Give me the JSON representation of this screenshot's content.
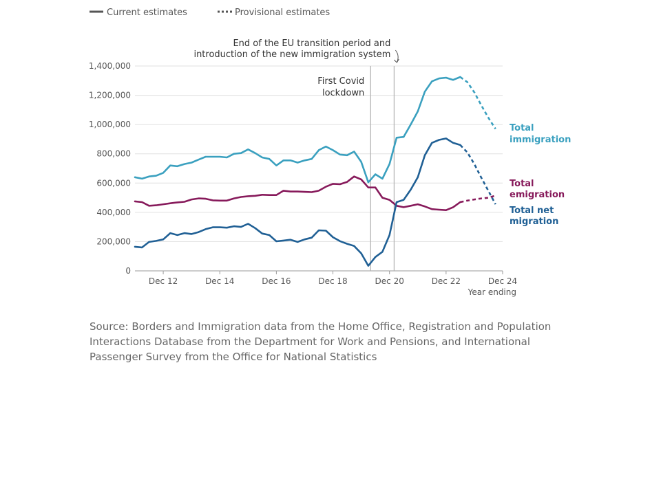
{
  "chart_data": {
    "type": "line",
    "xlabel": "Year ending",
    "ylabel": "",
    "ylim": [
      0,
      1400000
    ],
    "yticks": [
      "0",
      "200,000",
      "400,000",
      "600,000",
      "800,000",
      "1,000,000",
      "1,200,000",
      "1,400,000"
    ],
    "ytick_values": [
      0,
      200000,
      400000,
      600000,
      800000,
      1000000,
      1200000,
      1400000
    ],
    "xlim": [
      "Nov 11",
      "Dec 24"
    ],
    "xticks": [
      "Dec 12",
      "Dec 14",
      "Dec 16",
      "Dec 18",
      "Dec 20",
      "Dec 22",
      "Dec 24"
    ],
    "xtick_values": [
      2012.917,
      2014.917,
      2016.917,
      2018.917,
      2020.917,
      2022.917,
      2024.917
    ],
    "grid": "horizontal",
    "legend": {
      "placement": "top-left",
      "items": [
        {
          "label": "Current estimates",
          "style": "solid"
        },
        {
          "label": "Provisional estimates",
          "style": "dashed"
        }
      ]
    },
    "annotations": [
      {
        "lines": [
          "First Covid",
          "lockdown"
        ],
        "x": 2020.25
      },
      {
        "lines": [
          "End of the EU transition period and",
          "introduction of the new immigration system"
        ],
        "x": 2021.08
      }
    ],
    "series": [
      {
        "name": "Total immigration",
        "label_lines": [
          "Total",
          "immigration"
        ],
        "color": "#3aa0bf",
        "current": [
          [
            2011.917,
            640000
          ],
          [
            2012.167,
            630000
          ],
          [
            2012.417,
            645000
          ],
          [
            2012.667,
            650000
          ],
          [
            2012.917,
            670000
          ],
          [
            2013.167,
            720000
          ],
          [
            2013.417,
            715000
          ],
          [
            2013.667,
            730000
          ],
          [
            2013.917,
            740000
          ],
          [
            2014.167,
            760000
          ],
          [
            2014.417,
            780000
          ],
          [
            2014.667,
            780000
          ],
          [
            2014.917,
            780000
          ],
          [
            2015.167,
            775000
          ],
          [
            2015.417,
            800000
          ],
          [
            2015.667,
            805000
          ],
          [
            2015.917,
            830000
          ],
          [
            2016.167,
            805000
          ],
          [
            2016.417,
            775000
          ],
          [
            2016.667,
            765000
          ],
          [
            2016.917,
            720000
          ],
          [
            2017.167,
            755000
          ],
          [
            2017.417,
            755000
          ],
          [
            2017.667,
            740000
          ],
          [
            2017.917,
            755000
          ],
          [
            2018.167,
            765000
          ],
          [
            2018.417,
            825000
          ],
          [
            2018.667,
            850000
          ],
          [
            2018.917,
            825000
          ],
          [
            2019.167,
            795000
          ],
          [
            2019.417,
            790000
          ],
          [
            2019.667,
            815000
          ],
          [
            2019.917,
            745000
          ],
          [
            2020.167,
            605000
          ],
          [
            2020.417,
            660000
          ],
          [
            2020.667,
            630000
          ],
          [
            2020.917,
            730000
          ],
          [
            2021.167,
            910000
          ],
          [
            2021.417,
            915000
          ],
          [
            2021.667,
            1000000
          ],
          [
            2021.917,
            1090000
          ],
          [
            2022.167,
            1225000
          ],
          [
            2022.417,
            1295000
          ],
          [
            2022.667,
            1315000
          ],
          [
            2022.917,
            1320000
          ],
          [
            2023.167,
            1305000
          ],
          [
            2023.417,
            1325000
          ]
        ],
        "provisional": [
          [
            2023.417,
            1325000
          ],
          [
            2023.667,
            1290000
          ],
          [
            2023.917,
            1220000
          ],
          [
            2024.167,
            1130000
          ],
          [
            2024.417,
            1045000
          ],
          [
            2024.667,
            970000
          ]
        ]
      },
      {
        "name": "Total emigration",
        "label_lines": [
          "Total",
          "emigration"
        ],
        "color": "#871a5b",
        "current": [
          [
            2011.917,
            475000
          ],
          [
            2012.167,
            470000
          ],
          [
            2012.417,
            445000
          ],
          [
            2012.667,
            448000
          ],
          [
            2012.917,
            455000
          ],
          [
            2013.167,
            462000
          ],
          [
            2013.417,
            468000
          ],
          [
            2013.667,
            472000
          ],
          [
            2013.917,
            488000
          ],
          [
            2014.167,
            495000
          ],
          [
            2014.417,
            493000
          ],
          [
            2014.667,
            482000
          ],
          [
            2014.917,
            480000
          ],
          [
            2015.167,
            480000
          ],
          [
            2015.417,
            495000
          ],
          [
            2015.667,
            505000
          ],
          [
            2015.917,
            510000
          ],
          [
            2016.167,
            513000
          ],
          [
            2016.417,
            520000
          ],
          [
            2016.667,
            518000
          ],
          [
            2016.917,
            518000
          ],
          [
            2017.167,
            548000
          ],
          [
            2017.417,
            542000
          ],
          [
            2017.667,
            542000
          ],
          [
            2017.917,
            540000
          ],
          [
            2018.167,
            538000
          ],
          [
            2018.417,
            548000
          ],
          [
            2018.667,
            575000
          ],
          [
            2018.917,
            595000
          ],
          [
            2019.167,
            592000
          ],
          [
            2019.417,
            608000
          ],
          [
            2019.667,
            645000
          ],
          [
            2019.917,
            625000
          ],
          [
            2020.167,
            570000
          ],
          [
            2020.417,
            570000
          ],
          [
            2020.667,
            500000
          ],
          [
            2020.917,
            485000
          ],
          [
            2021.167,
            445000
          ],
          [
            2021.417,
            435000
          ],
          [
            2021.667,
            445000
          ],
          [
            2021.917,
            455000
          ],
          [
            2022.167,
            440000
          ],
          [
            2022.417,
            422000
          ],
          [
            2022.667,
            418000
          ],
          [
            2022.917,
            415000
          ],
          [
            2023.167,
            435000
          ],
          [
            2023.417,
            470000
          ]
        ],
        "provisional": [
          [
            2023.417,
            470000
          ],
          [
            2023.667,
            480000
          ],
          [
            2023.917,
            488000
          ],
          [
            2024.167,
            495000
          ],
          [
            2024.417,
            500000
          ],
          [
            2024.667,
            515000
          ]
        ]
      },
      {
        "name": "Total net migration",
        "label_lines": [
          "Total net",
          "migration"
        ],
        "color": "#206095",
        "current": [
          [
            2011.917,
            165000
          ],
          [
            2012.167,
            160000
          ],
          [
            2012.417,
            198000
          ],
          [
            2012.667,
            205000
          ],
          [
            2012.917,
            215000
          ],
          [
            2013.167,
            258000
          ],
          [
            2013.417,
            245000
          ],
          [
            2013.667,
            258000
          ],
          [
            2013.917,
            252000
          ],
          [
            2014.167,
            265000
          ],
          [
            2014.417,
            285000
          ],
          [
            2014.667,
            298000
          ],
          [
            2014.917,
            298000
          ],
          [
            2015.167,
            295000
          ],
          [
            2015.417,
            305000
          ],
          [
            2015.667,
            300000
          ],
          [
            2015.917,
            322000
          ],
          [
            2016.167,
            292000
          ],
          [
            2016.417,
            255000
          ],
          [
            2016.667,
            245000
          ],
          [
            2016.917,
            202000
          ],
          [
            2017.167,
            207000
          ],
          [
            2017.417,
            213000
          ],
          [
            2017.667,
            198000
          ],
          [
            2017.917,
            215000
          ],
          [
            2018.167,
            227000
          ],
          [
            2018.417,
            277000
          ],
          [
            2018.667,
            275000
          ],
          [
            2018.917,
            230000
          ],
          [
            2019.167,
            203000
          ],
          [
            2019.417,
            185000
          ],
          [
            2019.667,
            170000
          ],
          [
            2019.917,
            120000
          ],
          [
            2020.167,
            35000
          ],
          [
            2020.417,
            95000
          ],
          [
            2020.667,
            130000
          ],
          [
            2020.917,
            245000
          ],
          [
            2021.167,
            470000
          ],
          [
            2021.417,
            485000
          ],
          [
            2021.667,
            555000
          ],
          [
            2021.917,
            640000
          ],
          [
            2022.167,
            790000
          ],
          [
            2022.417,
            875000
          ],
          [
            2022.667,
            895000
          ],
          [
            2022.917,
            905000
          ],
          [
            2023.167,
            875000
          ],
          [
            2023.417,
            860000
          ]
        ],
        "provisional": [
          [
            2023.417,
            860000
          ],
          [
            2023.667,
            810000
          ],
          [
            2023.917,
            730000
          ],
          [
            2024.167,
            635000
          ],
          [
            2024.417,
            545000
          ],
          [
            2024.667,
            455000
          ]
        ]
      }
    ]
  },
  "source_text": "Source: Borders and Immigration data from the Home Office, Registration and Population Interactions Database from the Department for Work and Pensions, and International Passenger Survey from the Office for National Statistics"
}
